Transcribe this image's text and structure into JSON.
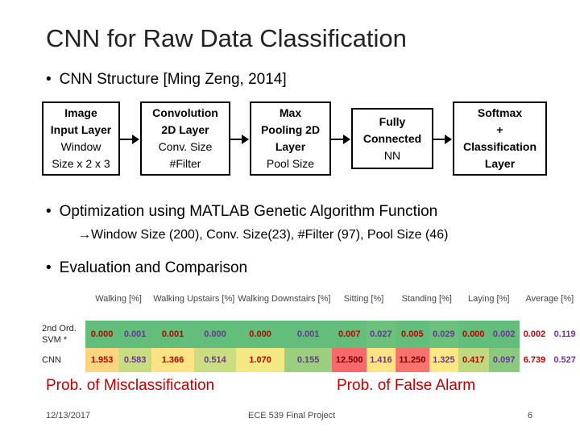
{
  "title": "CNN for Raw Data Classification",
  "bullets": {
    "structure": "CNN Structure [Ming Zeng, 2014]",
    "optimization": "Optimization using MATLAB Genetic Algorithm Function",
    "optimization_sub": "Window Size (200), Conv. Size(23), #Filter (97), Pool Size (46)",
    "evaluation": "Evaluation and Comparison"
  },
  "diagram": {
    "box1": {
      "l1": "Image",
      "l2": "Input Layer",
      "l3": "Window",
      "l4": "Size x 2 x 3"
    },
    "box2": {
      "l1": "Convolution",
      "l2": "2D Layer",
      "l3": "Conv. Size",
      "l4": "#Filter"
    },
    "box3": {
      "l1": "Max",
      "l2": "Pooling 2D",
      "l3": "Layer",
      "l4": "Pool Size"
    },
    "box4": {
      "l1": "Fully",
      "l2": "Connected",
      "l3": "NN"
    },
    "box5": {
      "l1": "Softmax",
      "l2": "+",
      "l3": "Classification",
      "l4": "Layer"
    }
  },
  "table": {
    "headers": [
      "Walking [%]",
      "Walking Upstairs [%]",
      "Walking Downstairs [%]",
      "Sitting [%]",
      "Standing [%]",
      "Laying [%]",
      "Average [%]"
    ],
    "rows": [
      {
        "label": "2nd Ord. SVM *",
        "values": [
          "0.000",
          "0.001",
          "0.001",
          "0.000",
          "0.000",
          "0.001",
          "0.007",
          "0.027",
          "0.005",
          "0.029",
          "0.000",
          "0.002",
          "0.002",
          "0.119"
        ]
      },
      {
        "label": "CNN",
        "values": [
          "1.953",
          "0.583",
          "1.366",
          "0.514",
          "1.070",
          "0.155",
          "12.500",
          "1.416",
          "11.250",
          "1.325",
          "0.417",
          "0.097",
          "6.739",
          "0.527"
        ]
      }
    ],
    "colors": {
      "row1": "#63be7b",
      "row2": "#f8e883",
      "red": "#f8696b",
      "green_light": "#a9d27f"
    }
  },
  "labels": {
    "misclassification": "Prob. of Misclassification",
    "false_alarm": "Prob. of False Alarm"
  },
  "footer": {
    "date": "12/13/2017",
    "course": "ECE 539 Final Project",
    "page": "6"
  }
}
